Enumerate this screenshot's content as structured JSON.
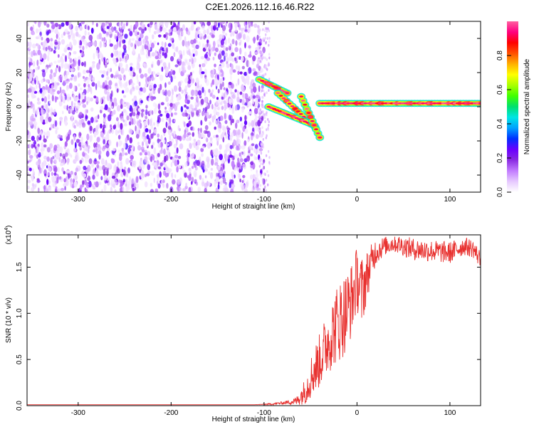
{
  "title": "C2E1.2026.112.16.46.R22",
  "chart_data": [
    {
      "type": "heatmap",
      "xlabel": "Height of straight line (km)",
      "ylabel": "Frequency (Hz)",
      "xlim": [
        -355,
        133
      ],
      "ylim": [
        -50,
        50
      ],
      "xticks": [
        -300,
        -200,
        -100,
        0,
        100
      ],
      "yticks": [
        -40,
        -20,
        0,
        20,
        40
      ],
      "colorbar": {
        "label": "Normalized spectral amplitude",
        "range": [
          0.0,
          1.0
        ],
        "ticks": [
          0.0,
          0.2,
          0.4,
          0.6,
          0.8
        ],
        "colormap": [
          "#ffffff",
          "#e6c8ff",
          "#c27cff",
          "#8a2be2",
          "#6a00ff",
          "#0030ff",
          "#00a0ff",
          "#00e5e5",
          "#00e070",
          "#40ff00",
          "#a8ff00",
          "#ffff00",
          "#ffb000",
          "#ff5000",
          "#ff0000",
          "#ff0080",
          "#ff60a0"
        ]
      },
      "regions": {
        "noise": {
          "x": [
            -355,
            -100
          ],
          "y": [
            -50,
            50
          ],
          "level": 0.15
        },
        "sparse_noise": {
          "x": [
            -105,
            -94
          ],
          "y": [
            -50,
            50
          ],
          "level": 0.05
        },
        "tone_tracks": [
          {
            "x": [
              -105,
              -75
            ],
            "y": [
              16,
              8
            ]
          },
          {
            "x": [
              -85,
              -45
            ],
            "y": [
              8,
              -12
            ]
          },
          {
            "x": [
              -95,
              -50
            ],
            "y": [
              0,
              -10
            ]
          },
          {
            "x": [
              -60,
              -40
            ],
            "y": [
              6,
              -18
            ]
          },
          {
            "x": [
              -40,
              133
            ],
            "y": [
              2,
              2
            ]
          }
        ]
      }
    },
    {
      "type": "line",
      "xlabel": "Height of straight line (km)",
      "ylabel": "SNR (10 * v/v)",
      "y_multiplier": "(x10",
      "y_multiplier_exp": "4",
      "y_multiplier_close": ")",
      "xlim": [
        -355,
        133
      ],
      "ylim": [
        0.0,
        1.85
      ],
      "xticks": [
        -300,
        -200,
        -100,
        0,
        100
      ],
      "yticks": [
        0.0,
        0.5,
        1.0,
        1.5
      ],
      "ytick_labels": [
        "0.0",
        "0.5",
        "1.0",
        "1.5"
      ],
      "color": "#e8312f",
      "series": [
        {
          "x": [
            -355,
            -300,
            -250,
            -200,
            -150,
            -110,
            -90,
            -75,
            -65,
            -55,
            -48,
            -40,
            -32,
            -25,
            -20,
            -12,
            -5,
            0,
            5,
            12,
            20,
            30,
            40,
            60,
            80,
            100,
            115,
            125,
            133
          ],
          "y": [
            0.01,
            0.01,
            0.01,
            0.01,
            0.01,
            0.01,
            0.02,
            0.04,
            0.06,
            0.2,
            0.4,
            0.55,
            0.75,
            0.9,
            1.0,
            1.1,
            1.25,
            1.45,
            1.3,
            1.5,
            1.7,
            1.75,
            1.78,
            1.72,
            1.7,
            1.68,
            1.75,
            1.72,
            1.6
          ],
          "noise_amp": [
            0,
            0,
            0,
            0,
            0,
            0,
            0.01,
            0.02,
            0.05,
            0.15,
            0.25,
            0.3,
            0.35,
            0.4,
            0.45,
            0.45,
            0.4,
            0.35,
            0.4,
            0.25,
            0.15,
            0.1,
            0.1,
            0.12,
            0.12,
            0.12,
            0.1,
            0.1,
            0.1
          ]
        }
      ]
    }
  ]
}
